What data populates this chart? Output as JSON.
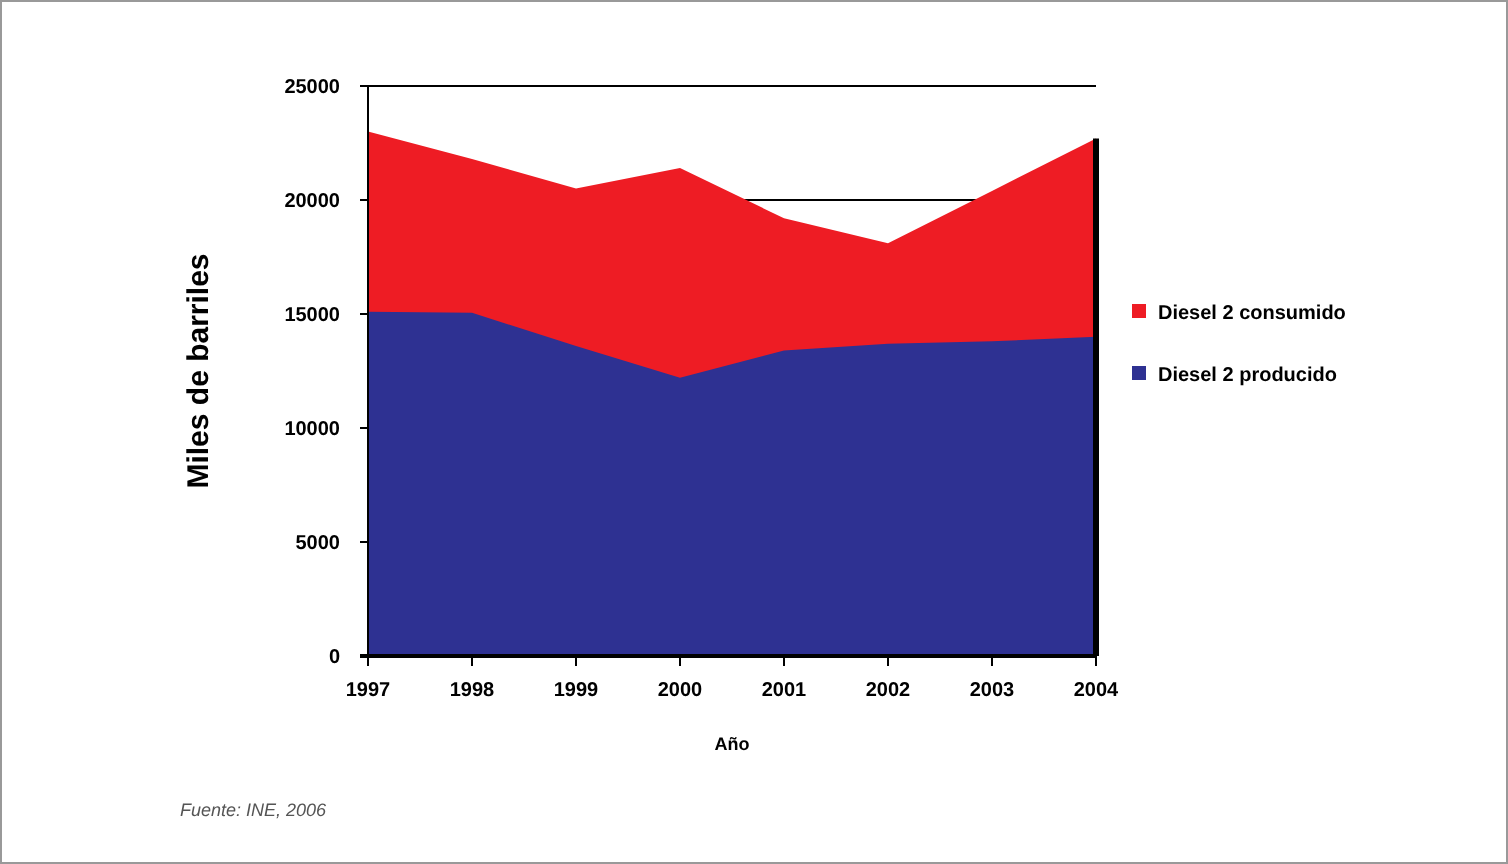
{
  "chart_data": {
    "type": "area",
    "xlabel": "Año",
    "ylabel": "Miles de barriles",
    "categories": [
      "1997",
      "1998",
      "1999",
      "2000",
      "2001",
      "2002",
      "2003",
      "2004"
    ],
    "series": [
      {
        "name": "Diesel 2 consumido",
        "color": "#ee1c24",
        "values": [
          23000,
          21800,
          20500,
          21400,
          19200,
          18100,
          20400,
          22700
        ]
      },
      {
        "name": "Diesel 2 producido",
        "color": "#2e3192",
        "values": [
          15100,
          15050,
          13600,
          12200,
          13400,
          13700,
          13800,
          14000
        ]
      }
    ],
    "ylim": [
      0,
      25000
    ],
    "yticks": [
      0,
      5000,
      10000,
      15000,
      20000,
      25000
    ],
    "grid": "y",
    "legend": "right",
    "annotations": [
      "Fuente: INE, 2006"
    ]
  }
}
